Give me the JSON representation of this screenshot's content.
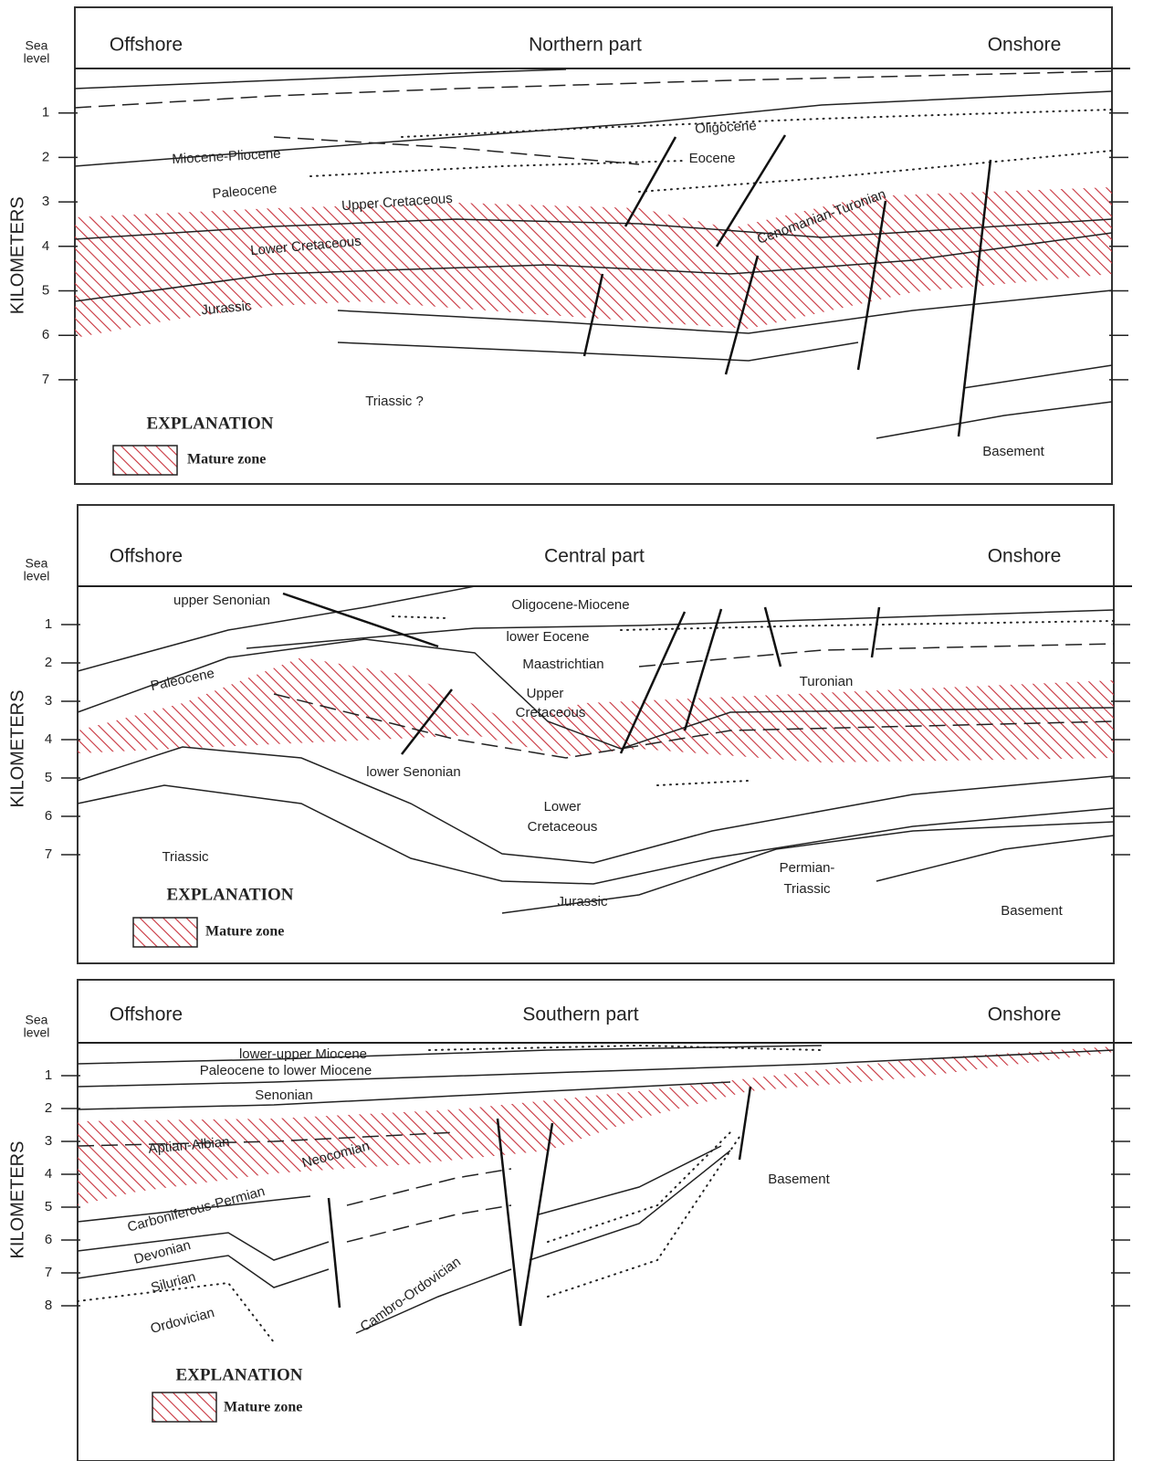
{
  "panels": [
    {
      "title": "Northern part",
      "left": "Offshore",
      "right": "Onshore",
      "sea_level": [
        "Sea",
        "level"
      ],
      "axis_label": "KILOMETERS",
      "ticks": [
        1,
        2,
        3,
        4,
        5,
        6,
        7
      ],
      "labels": [
        "Miocene-Pliocene",
        "Paleocene",
        "Upper Cretaceous",
        "Lower Cretaceous",
        "Jurassic",
        "Triassic ?",
        "Oligocene",
        "Eocene",
        "Cenomanian-Turonian",
        "Basement"
      ],
      "explanation": "EXPLANATION",
      "legend": "Mature zone"
    },
    {
      "title": "Central part",
      "left": "Offshore",
      "right": "Onshore",
      "sea_level": [
        "Sea",
        "level"
      ],
      "axis_label": "KILOMETERS",
      "ticks": [
        1,
        2,
        3,
        4,
        5,
        6,
        7
      ],
      "labels": [
        "upper Senonian",
        "Oligocene-Miocene",
        "lower Eocene",
        "Maastrichtian",
        "Paleocene",
        "Upper",
        "Cretaceous",
        "Turonian",
        "lower Senonian",
        "Lower",
        "Cretaceous",
        "Triassic",
        "Jurassic",
        "Permian-",
        "Triassic",
        "Basement"
      ],
      "explanation": "EXPLANATION",
      "legend": "Mature zone"
    },
    {
      "title": "Southern part",
      "left": "Offshore",
      "right": "Onshore",
      "sea_level": [
        "Sea",
        "level"
      ],
      "axis_label": "KILOMETERS",
      "ticks": [
        1,
        2,
        3,
        4,
        5,
        6,
        7,
        8
      ],
      "labels": [
        "lower-upper Miocene",
        "Paleocene to lower Miocene",
        "Senonian",
        "Aptian-Albian",
        "Neocomian",
        "Basement",
        "Carboniferous-Permian",
        "Devonian",
        "Silurian",
        "Ordovician",
        "Cambro-Ordovician"
      ],
      "explanation": "EXPLANATION",
      "legend": "Mature zone"
    }
  ]
}
